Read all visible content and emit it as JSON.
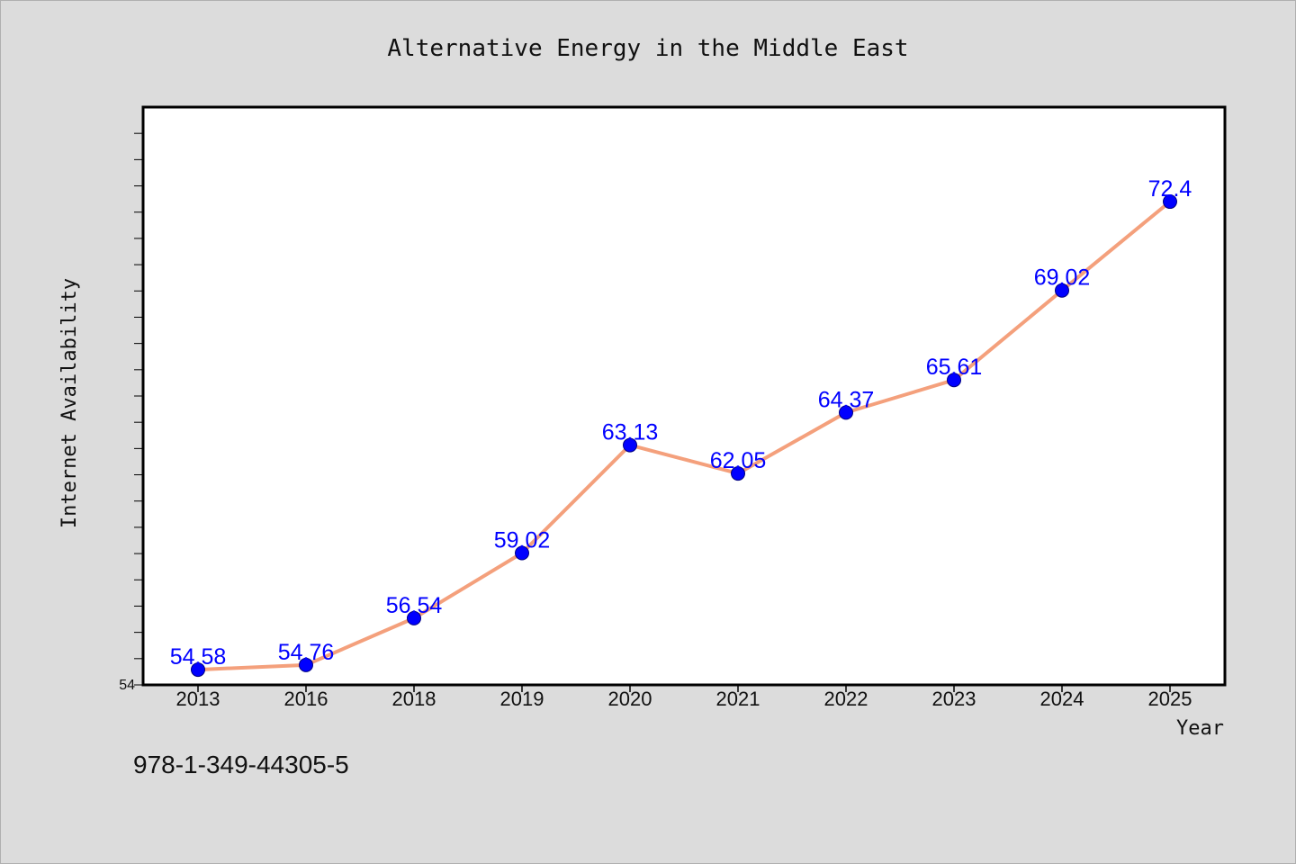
{
  "chart_data": {
    "type": "line",
    "title": "Alternative Energy in the Middle East",
    "xlabel": "Year",
    "ylabel": "Internet Availability",
    "categories": [
      "2013",
      "2016",
      "2018",
      "2019",
      "2020",
      "2021",
      "2022",
      "2023",
      "2024",
      "2025"
    ],
    "series": [
      {
        "values": [
          54.58,
          54.76,
          56.54,
          59.02,
          63.13,
          62.05,
          64.37,
          65.61,
          69.02,
          72.4
        ]
      }
    ],
    "data_labels": [
      "54.58",
      "54.76",
      "56.54",
      "59.02",
      "63.13",
      "62.05",
      "64.37",
      "65.61",
      "69.02",
      "72.4"
    ],
    "ylim": [
      54,
      76
    ],
    "y_tick_labels": [
      "54"
    ],
    "grid": false,
    "legend": "none",
    "colors": {
      "line": "#f4a07c",
      "marker_fill": "#0000ff",
      "marker_edge": "#000080",
      "data_label": "#0000ff",
      "plot_background": "#ffffff",
      "figure_background": "#dcdcdc"
    }
  },
  "footer": {
    "isbn": "978-1-349-44305-5"
  }
}
